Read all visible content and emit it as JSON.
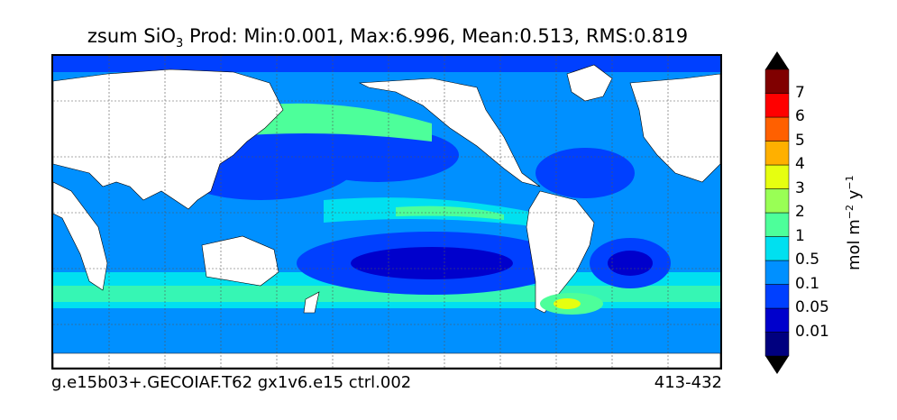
{
  "title": {
    "prefix": "zsum SiO",
    "subscript": "3",
    "stats": " Prod: Min:0.001, Max:6.996, Mean:0.513, RMS:0.819"
  },
  "footer": {
    "run_name": "g.e15b03+.GECOIAF.T62 gx1v6.e15 ctrl.002",
    "years": "413-432"
  },
  "colorbar": {
    "units_base": "mol m",
    "units_exp1": "−2",
    "units_mid": " y",
    "units_exp2": "−1",
    "levels": [
      "0.01",
      "0.05",
      "0.1",
      "0.5",
      "1",
      "2",
      "3",
      "4",
      "5",
      "6",
      "7"
    ],
    "colors": [
      "#00007f",
      "#0000cc",
      "#0040ff",
      "#0090ff",
      "#00e0f0",
      "#4dff9a",
      "#99ff55",
      "#e6ff10",
      "#ffb000",
      "#ff6000",
      "#ff0000",
      "#800000"
    ]
  },
  "colors": {
    "land": "#ffffff",
    "deep_ocean": "#0000cc",
    "ocean": "#1a5cff"
  }
}
